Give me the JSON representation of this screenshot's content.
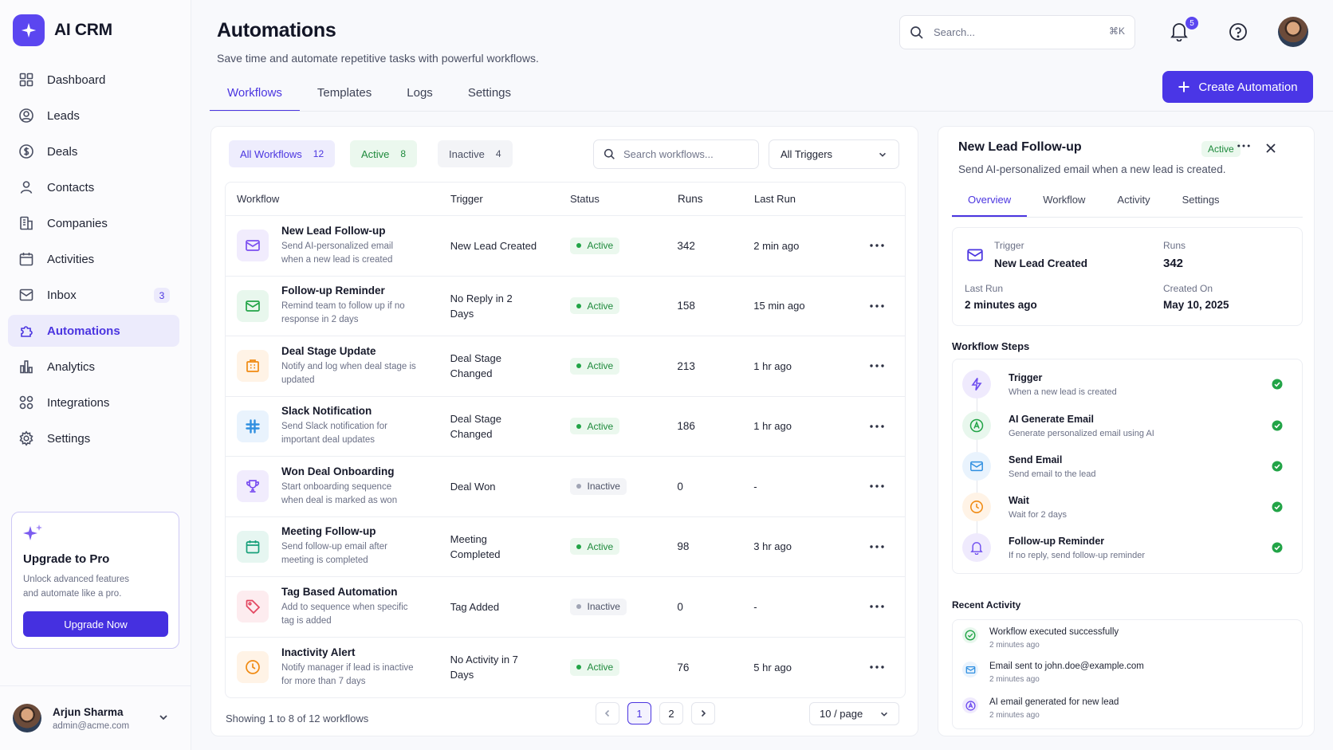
{
  "app": {
    "name": "AI CRM"
  },
  "sidebar": {
    "items": [
      {
        "label": "Dashboard"
      },
      {
        "label": "Leads"
      },
      {
        "label": "Deals"
      },
      {
        "label": "Contacts"
      },
      {
        "label": "Companies"
      },
      {
        "label": "Activities"
      },
      {
        "label": "Inbox",
        "badge": "3"
      },
      {
        "label": "Automations"
      },
      {
        "label": "Analytics"
      },
      {
        "label": "Integrations"
      },
      {
        "label": "Settings"
      }
    ],
    "upgrade": {
      "title": "Upgrade to Pro",
      "subtitle": "Unlock advanced features and automate like a pro.",
      "button": "Upgrade Now"
    },
    "user": {
      "name": "Arjun Sharma",
      "email": "admin@acme.com"
    }
  },
  "header": {
    "title": "Automations",
    "subtitle": "Save time and automate repetitive tasks with powerful workflows.",
    "search_placeholder": "Search...",
    "search_shortcut": "⌘K",
    "notifications_count": "5",
    "create_button": "Create Automation"
  },
  "tabs": [
    {
      "label": "Workflows"
    },
    {
      "label": "Templates"
    },
    {
      "label": "Logs"
    },
    {
      "label": "Settings"
    }
  ],
  "filters": {
    "all": {
      "label": "All Workflows",
      "count": "12"
    },
    "active": {
      "label": "Active",
      "count": "8"
    },
    "inactive": {
      "label": "Inactive",
      "count": "4"
    },
    "search_placeholder": "Search workflows...",
    "trigger_select": "All Triggers"
  },
  "table": {
    "headers": {
      "workflow": "Workflow",
      "trigger": "Trigger",
      "status": "Status",
      "runs": "Runs",
      "last_run": "Last Run"
    },
    "rows": [
      {
        "name": "New Lead Follow-up",
        "desc": "Send AI-personalized email when a new lead is created",
        "trigger": "New Lead Created",
        "status": "Active",
        "runs": "342",
        "last_run": "2 min ago",
        "icon": "mail-icon"
      },
      {
        "name": "Follow-up Reminder",
        "desc": "Remind team to follow up if no response in 2 days",
        "trigger": "No Reply in 2 Days",
        "status": "Active",
        "runs": "158",
        "last_run": "15 min ago",
        "icon": "mail-icon"
      },
      {
        "name": "Deal Stage Update",
        "desc": "Notify and log when deal stage is updated",
        "trigger": "Deal Stage Changed",
        "status": "Active",
        "runs": "213",
        "last_run": "1 hr ago",
        "icon": "building-icon"
      },
      {
        "name": "Slack Notification",
        "desc": "Send Slack notification for important deal updates",
        "trigger": "Deal Stage Changed",
        "status": "Active",
        "runs": "186",
        "last_run": "1 hr ago",
        "icon": "slack-icon"
      },
      {
        "name": "Won Deal Onboarding",
        "desc": "Start onboarding sequence when deal is marked as won",
        "trigger": "Deal Won",
        "status": "Inactive",
        "runs": "0",
        "last_run": "-",
        "icon": "trophy-icon"
      },
      {
        "name": "Meeting Follow-up",
        "desc": "Send follow-up email after meeting is completed",
        "trigger": "Meeting Completed",
        "status": "Active",
        "runs": "98",
        "last_run": "3 hr ago",
        "icon": "calendar-icon"
      },
      {
        "name": "Tag Based Automation",
        "desc": "Add to sequence when specific tag is added",
        "trigger": "Tag Added",
        "status": "Inactive",
        "runs": "0",
        "last_run": "-",
        "icon": "tag-icon"
      },
      {
        "name": "Inactivity Alert",
        "desc": "Notify manager if lead is inactive for more than 7 days",
        "trigger": "No Activity in 7 Days",
        "status": "Active",
        "runs": "76",
        "last_run": "5 hr ago",
        "icon": "clock-icon"
      }
    ],
    "footer": "Showing 1 to 8 of 12 workflows",
    "pages": [
      "1",
      "2"
    ],
    "per_page": "10 / page"
  },
  "detail": {
    "title": "New Lead Follow-up",
    "status": "Active",
    "subtitle": "Send AI-personalized email when a new lead is created.",
    "tabs": [
      {
        "label": "Overview"
      },
      {
        "label": "Workflow"
      },
      {
        "label": "Activity"
      },
      {
        "label": "Settings"
      }
    ],
    "trigger_label": "Trigger",
    "trigger_value": "New Lead Created",
    "runs_label": "Runs",
    "runs_value": "342",
    "last_run_label": "Last Run",
    "last_run_value": "2 minutes ago",
    "created_label": "Created On",
    "created_value": "May 10, 2025",
    "steps_title": "Workflow Steps",
    "steps": [
      {
        "name": "Trigger",
        "desc": "When a new lead is created"
      },
      {
        "name": "AI Generate Email",
        "desc": "Generate personalized email using AI"
      },
      {
        "name": "Send Email",
        "desc": "Send email to the lead"
      },
      {
        "name": "Wait",
        "desc": "Wait for 2 days"
      },
      {
        "name": "Follow-up Reminder",
        "desc": "If no reply, send follow-up reminder"
      }
    ],
    "activity_title": "Recent Activity",
    "activity": [
      {
        "text": "Workflow executed successfully",
        "time": "2 minutes ago"
      },
      {
        "text": "Email sent to john.doe@example.com",
        "time": "2 minutes ago"
      },
      {
        "text": "AI email generated for new lead",
        "time": "2 minutes ago"
      }
    ]
  },
  "colors": {
    "accent": "#4a36e6",
    "active_green": "#1e8a3c",
    "sidebar_active_bg": "#ecebfc"
  }
}
